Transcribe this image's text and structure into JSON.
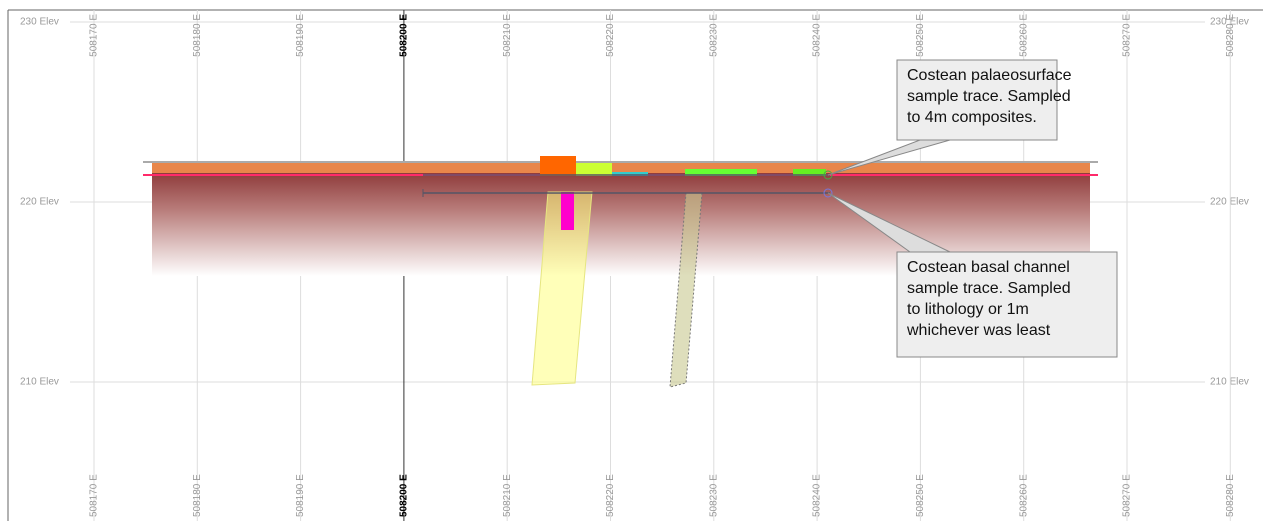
{
  "elevation_labels": [
    "230 Elev",
    "220 Elev",
    "210 Elev"
  ],
  "easting_labels": [
    "508170 E",
    "508180 E",
    "508190 E",
    "508200 E",
    "508210 E",
    "508220 E",
    "508230 E",
    "508240 E",
    "508250 E",
    "508260 E",
    "508270 E",
    "508280 E"
  ],
  "callouts": [
    {
      "lines": [
        "Costean palaeosurface",
        "sample trace. Sampled",
        "to 4m composites."
      ]
    },
    {
      "lines": [
        "Costean basal channel",
        "sample trace. Sampled",
        "to lithology or 1m",
        "whichever was least"
      ]
    }
  ]
}
